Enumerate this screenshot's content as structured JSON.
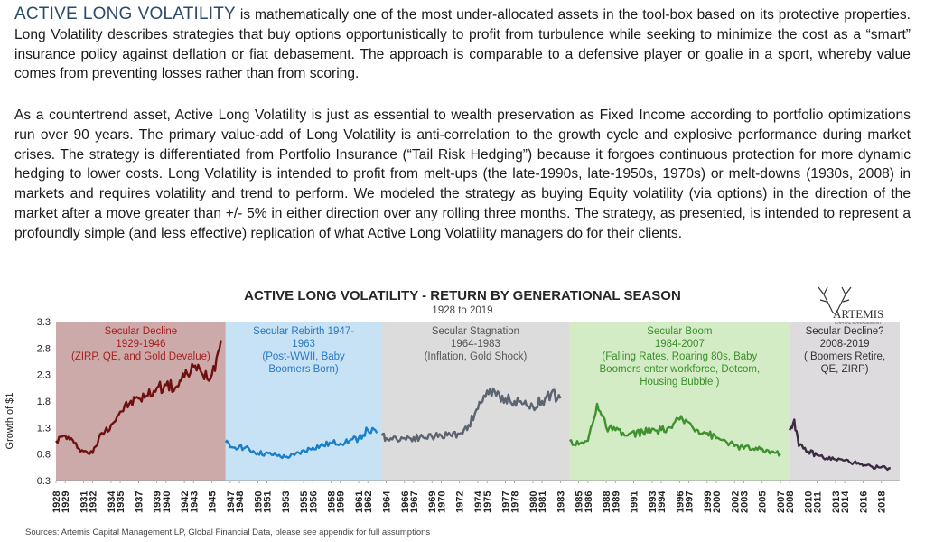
{
  "intro": {
    "lead": "ACTIVE LONG VOLATILITY",
    "p1_rest": " is mathematically one of the most under-allocated assets in the tool-box based on its protective properties. Long Volatility describes strategies that buy options opportunistically to profit from turbulence while seeking to minimize the cost as a “smart” insurance policy against deflation or fiat debasement. The approach is comparable to a defensive player or goalie in a sport, whereby value comes from preventing losses rather than from scoring.",
    "p2": "As a countertrend asset, Active Long Volatility is just as essential to wealth preservation as Fixed Income according to portfolio optimizations run over 90 years. The primary value-add of Long Volatility is anti-correlation to the growth cycle and explosive performance during market crises. The strategy is differentiated from Portfolio Insurance (“Tail Risk Hedging”) because it forgoes continuous protection for more dynamic hedging to lower costs. Long Volatility is intended to profit from melt-ups (the late-1990s, late-1950s, 1970s) or melt-downs (1930s, 2008) in markets and requires volatility and trend to perform.  We modeled the strategy as buying Equity volatility (via options) in the direction of the market after a move greater than +/- 5% in either direction over any rolling three months. The strategy, as presented, is intended to represent a profoundly simple (and less effective) replication of what Active Long Volatility managers do for their clients."
  },
  "logo": {
    "name": "ARTEMIS",
    "sub": "CAPITAL MANAGEMENT"
  },
  "colors": {
    "title": "#262626",
    "regime_fills": [
      "#cdaaaa",
      "#c8e2f5",
      "#dcdcdc",
      "#d3ecc6",
      "#dedbde"
    ],
    "regime_text": [
      "#a82020",
      "#2a78c0",
      "#555555",
      "#3a8f2a",
      "#333333"
    ],
    "series": [
      "#6e1010",
      "#1a7fc8",
      "#5b6470",
      "#3f922f",
      "#3b2a42"
    ]
  },
  "chart_data": {
    "type": "line",
    "title": "ACTIVE LONG VOLATILITY - RETURN BY GENERATIONAL SEASON",
    "subtitle": "1928 to 2019",
    "xlabel": "",
    "ylabel": "Growth of $1",
    "ylim": [
      0.3,
      3.3
    ],
    "yticks": [
      "0.3",
      "0.8",
      "1.3",
      "1.8",
      "2.3",
      "2.8",
      "3.3"
    ],
    "xlim": [
      1928,
      2020
    ],
    "xticks": [
      1928,
      1929,
      1931,
      1932,
      1934,
      1935,
      1937,
      1939,
      1940,
      1942,
      1943,
      1945,
      1947,
      1948,
      1950,
      1951,
      1953,
      1955,
      1956,
      1958,
      1959,
      1961,
      1962,
      1964,
      1966,
      1967,
      1969,
      1970,
      1972,
      1974,
      1975,
      1977,
      1978,
      1980,
      1981,
      1983,
      1985,
      1986,
      1988,
      1989,
      1991,
      1993,
      1994,
      1996,
      1997,
      1999,
      2000,
      2002,
      2003,
      2005,
      2007,
      2008,
      2010,
      2011,
      2013,
      2014,
      2016,
      2018
    ],
    "regimes": [
      {
        "start": 1928,
        "end": 1946.5,
        "lines": [
          "Secular Decline",
          "1929-1946",
          "(ZIRP, QE, and Gold Devalue)"
        ]
      },
      {
        "start": 1946.5,
        "end": 1963.5,
        "lines": [
          "Secular Rebirth 1947-",
          "1963",
          "(Post-WWII, Baby",
          "Boomers Born)"
        ]
      },
      {
        "start": 1963.5,
        "end": 1984,
        "lines": [
          "Secular Stagnation",
          "1964-1983",
          "(Inflation, Gold Shock)"
        ]
      },
      {
        "start": 1984,
        "end": 2008,
        "lines": [
          "Secular Boom",
          "1984-2007",
          "(Falling Rates, Roaring 80s, Baby",
          "Boomers enter workforce, Dotcom,",
          "Housing Bubble )"
        ]
      },
      {
        "start": 2008,
        "end": 2020,
        "lines": [
          "Secular Decline?",
          "2008-2019",
          "( Boomers Retire,",
          "QE, ZIRP)"
        ]
      }
    ],
    "series": [
      {
        "x": [
          1928,
          1929,
          1930,
          1931,
          1932,
          1933,
          1934,
          1935,
          1936,
          1937,
          1938,
          1939,
          1940,
          1941,
          1942,
          1943,
          1944,
          1945,
          1946
        ],
        "y": [
          1.05,
          1.15,
          1.0,
          0.85,
          0.82,
          1.2,
          1.35,
          1.6,
          1.75,
          1.85,
          1.9,
          2.05,
          2.1,
          2.05,
          2.25,
          2.45,
          2.3,
          2.3,
          2.95
        ]
      },
      {
        "x": [
          1946.5,
          1947,
          1948,
          1950,
          1952,
          1953,
          1954,
          1956,
          1958,
          1960,
          1961,
          1962,
          1963
        ],
        "y": [
          1.02,
          0.93,
          0.95,
          0.82,
          0.78,
          0.74,
          0.78,
          0.92,
          1.0,
          1.05,
          1.1,
          1.25,
          1.2
        ]
      },
      {
        "x": [
          1963.5,
          1964,
          1966,
          1968,
          1970,
          1972,
          1973,
          1974,
          1975,
          1976,
          1977,
          1978,
          1979,
          1980,
          1981,
          1982,
          1983
        ],
        "y": [
          1.15,
          1.1,
          1.1,
          1.12,
          1.15,
          1.18,
          1.35,
          1.65,
          2.0,
          1.9,
          1.85,
          1.8,
          1.75,
          1.7,
          1.8,
          1.95,
          1.85
        ]
      },
      {
        "x": [
          1984,
          1985,
          1986,
          1987,
          1988,
          1989,
          1990,
          1992,
          1994,
          1995,
          1996,
          1997,
          1998,
          1999,
          2000,
          2001,
          2002,
          2004,
          2006,
          2007
        ],
        "y": [
          1.05,
          0.98,
          1.05,
          1.75,
          1.3,
          1.25,
          1.15,
          1.22,
          1.25,
          1.3,
          1.45,
          1.4,
          1.25,
          1.2,
          1.1,
          1.05,
          0.95,
          0.9,
          0.85,
          0.8
        ]
      },
      {
        "x": [
          2008,
          2008.5,
          2009,
          2010,
          2011,
          2012,
          2013,
          2014,
          2015,
          2016,
          2017,
          2018,
          2019
        ],
        "y": [
          1.25,
          1.45,
          0.95,
          0.85,
          0.78,
          0.72,
          0.7,
          0.68,
          0.64,
          0.58,
          0.56,
          0.55,
          0.53
        ]
      }
    ],
    "source": "Sources: Artemis Capital Management LP, Global Financial Data, please see appendix for full assumptions"
  }
}
